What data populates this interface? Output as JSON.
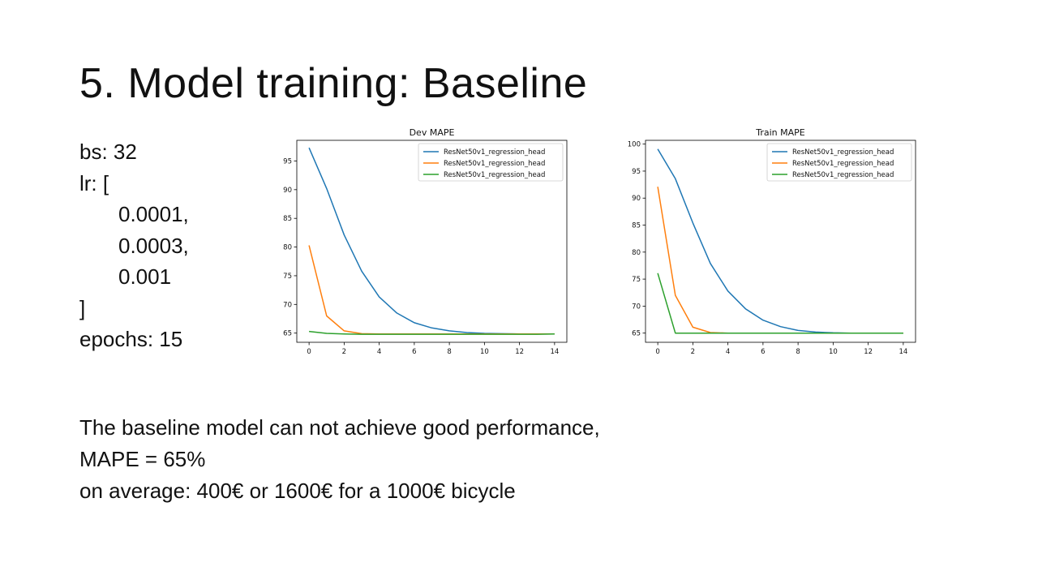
{
  "slide": {
    "title": "5. Model training: Baseline",
    "params": {
      "bs": "bs: 32",
      "lr_open": "lr: [",
      "lr_values": [
        "0.0001,",
        "0.0003,",
        "0.001"
      ],
      "lr_close": "]",
      "epochs": "epochs: 15"
    },
    "conclusion": [
      "The baseline model can not achieve good performance,",
      "MAPE = 65%",
      "on average: 400€ or 1600€ for a 1000€ bicycle"
    ]
  },
  "colors": {
    "series": [
      "#1f77b4",
      "#ff7f0e",
      "#2ca02c"
    ],
    "axis": "#000000",
    "background": "#ffffff"
  },
  "chart_data": [
    {
      "type": "line",
      "title": "Dev MAPE",
      "xlabel": "",
      "ylabel": "",
      "x": [
        0,
        1,
        2,
        3,
        4,
        5,
        6,
        7,
        8,
        9,
        10,
        11,
        12,
        13,
        14
      ],
      "xlim": [
        -0.7,
        14.7
      ],
      "ylim": [
        63.4,
        98.6
      ],
      "xticks": [
        0,
        2,
        4,
        6,
        8,
        10,
        12,
        14
      ],
      "yticks": [
        65,
        70,
        75,
        80,
        85,
        90,
        95
      ],
      "grid": false,
      "legend": "top-right",
      "series": [
        {
          "name": "ResNet50v1_regression_head",
          "values": [
            97.3,
            90.2,
            82.1,
            75.8,
            71.3,
            68.5,
            66.8,
            65.9,
            65.4,
            65.1,
            64.95,
            64.9,
            64.85,
            64.85,
            64.85
          ]
        },
        {
          "name": "ResNet50v1_regression_head",
          "values": [
            80.3,
            68.0,
            65.4,
            64.9,
            64.85,
            64.85,
            64.85,
            64.85,
            64.85,
            64.85,
            64.85,
            64.85,
            64.85,
            64.85,
            64.85
          ]
        },
        {
          "name": "ResNet50v1_regression_head",
          "values": [
            65.3,
            64.95,
            64.85,
            64.8,
            64.8,
            64.8,
            64.8,
            64.8,
            64.8,
            64.8,
            64.8,
            64.8,
            64.8,
            64.8,
            64.85
          ]
        }
      ]
    },
    {
      "type": "line",
      "title": "Train MAPE",
      "xlabel": "",
      "ylabel": "",
      "x": [
        0,
        1,
        2,
        3,
        4,
        5,
        6,
        7,
        8,
        9,
        10,
        11,
        12,
        13,
        14
      ],
      "xlim": [
        -0.7,
        14.7
      ],
      "ylim": [
        63.3,
        100.7
      ],
      "xticks": [
        0,
        2,
        4,
        6,
        8,
        10,
        12,
        14
      ],
      "yticks": [
        65,
        70,
        75,
        80,
        85,
        90,
        95,
        100
      ],
      "grid": false,
      "legend": "top-right",
      "series": [
        {
          "name": "ResNet50v1_regression_head",
          "values": [
            99.1,
            93.6,
            85.4,
            77.9,
            72.8,
            69.5,
            67.4,
            66.2,
            65.5,
            65.2,
            65.05,
            65.0,
            65.0,
            65.0,
            65.0
          ]
        },
        {
          "name": "ResNet50v1_regression_head",
          "values": [
            92.1,
            72.0,
            66.1,
            65.1,
            65.0,
            65.0,
            65.0,
            65.0,
            65.0,
            65.0,
            65.0,
            65.0,
            65.0,
            65.0,
            65.0
          ]
        },
        {
          "name": "ResNet50v1_regression_head",
          "values": [
            76.1,
            65.0,
            65.0,
            65.0,
            65.0,
            65.0,
            65.0,
            65.0,
            65.0,
            65.0,
            65.0,
            65.0,
            65.0,
            65.0,
            65.0
          ]
        }
      ]
    }
  ]
}
